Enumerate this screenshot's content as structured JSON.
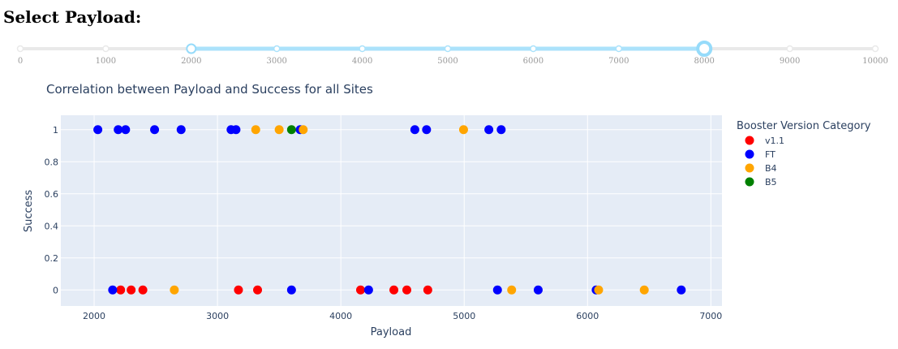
{
  "heading": "Select Payload:",
  "slider": {
    "min": 0,
    "max": 10000,
    "range_low": 2000,
    "range_high": 8000,
    "marks": [
      "0",
      "1000",
      "2000",
      "3000",
      "4000",
      "5000",
      "6000",
      "7000",
      "8000",
      "9000",
      "10000"
    ],
    "track_color": "#e9e9e9",
    "range_color": "#abe2fb",
    "handle_color": "#96dbfa"
  },
  "chart_data": {
    "type": "scatter",
    "title": "Correlation between Payload and Success for all Sites",
    "xlabel": "Payload",
    "ylabel": "Success",
    "xlim": [
      1730,
      7090
    ],
    "ylim": [
      -0.1,
      1.09
    ],
    "xticks": [
      "2000",
      "3000",
      "4000",
      "5000",
      "6000",
      "7000"
    ],
    "yticks": [
      "0",
      "0.2",
      "0.4",
      "0.6",
      "0.8",
      "1"
    ],
    "grid": true,
    "legend_title": "Booster Version Category",
    "legend_position": "right",
    "plot_bgcolor": "#e5ecf6",
    "series": [
      {
        "name": "v1.1",
        "color": "#ff0000",
        "x": [
          2215,
          2300,
          2395,
          3170,
          3325,
          4160,
          4430,
          4535,
          4705
        ],
        "y": [
          0,
          0,
          0,
          0,
          0,
          0,
          0,
          0,
          0
        ]
      },
      {
        "name": "FT",
        "color": "#0000ff",
        "x": [
          2030,
          2195,
          2255,
          2490,
          2705,
          3110,
          3150,
          3670,
          4600,
          4695,
          5200,
          5300,
          2150,
          3600,
          4225,
          5270,
          5600,
          6070,
          6760
        ],
        "y": [
          1,
          1,
          1,
          1,
          1,
          1,
          1,
          1,
          1,
          1,
          1,
          1,
          0,
          0,
          0,
          0,
          0,
          0,
          0
        ]
      },
      {
        "name": "B4",
        "color": "#ffa500",
        "x": [
          3310,
          3500,
          3695,
          4995,
          2650,
          5385,
          6090,
          6460
        ],
        "y": [
          1,
          1,
          1,
          1,
          0,
          0,
          0,
          0
        ]
      },
      {
        "name": "B5",
        "color": "#008000",
        "x": [
          3600
        ],
        "y": [
          1
        ]
      }
    ]
  }
}
